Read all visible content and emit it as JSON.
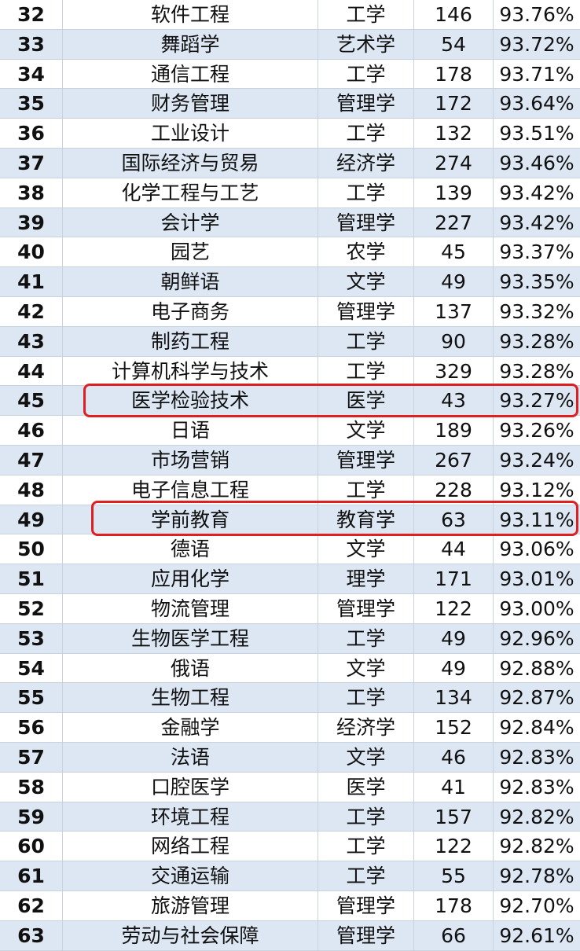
{
  "table": {
    "rows": [
      [
        "32",
        "软件工程",
        "工学",
        "146",
        "93.76%"
      ],
      [
        "33",
        "舞蹈学",
        "艺术学",
        "54",
        "93.72%"
      ],
      [
        "34",
        "通信工程",
        "工学",
        "178",
        "93.71%"
      ],
      [
        "35",
        "财务管理",
        "管理学",
        "172",
        "93.64%"
      ],
      [
        "36",
        "工业设计",
        "工学",
        "132",
        "93.51%"
      ],
      [
        "37",
        "国际经济与贸易",
        "经济学",
        "274",
        "93.46%"
      ],
      [
        "38",
        "化学工程与工艺",
        "工学",
        "139",
        "93.42%"
      ],
      [
        "39",
        "会计学",
        "管理学",
        "227",
        "93.42%"
      ],
      [
        "40",
        "园艺",
        "农学",
        "45",
        "93.37%"
      ],
      [
        "41",
        "朝鲜语",
        "文学",
        "49",
        "93.35%"
      ],
      [
        "42",
        "电子商务",
        "管理学",
        "137",
        "93.32%"
      ],
      [
        "43",
        "制药工程",
        "工学",
        "90",
        "93.28%"
      ],
      [
        "44",
        "计算机科学与技术",
        "工学",
        "329",
        "93.28%"
      ],
      [
        "45",
        "医学检验技术",
        "医学",
        "43",
        "93.27%"
      ],
      [
        "46",
        "日语",
        "文学",
        "189",
        "93.26%"
      ],
      [
        "47",
        "市场营销",
        "管理学",
        "267",
        "93.24%"
      ],
      [
        "48",
        "电子信息工程",
        "工学",
        "228",
        "93.12%"
      ],
      [
        "49",
        "学前教育",
        "教育学",
        "63",
        "93.11%"
      ],
      [
        "50",
        "德语",
        "文学",
        "44",
        "93.06%"
      ],
      [
        "51",
        "应用化学",
        "理学",
        "171",
        "93.01%"
      ],
      [
        "52",
        "物流管理",
        "管理学",
        "122",
        "93.00%"
      ],
      [
        "53",
        "生物医学工程",
        "工学",
        "49",
        "92.96%"
      ],
      [
        "54",
        "俄语",
        "文学",
        "49",
        "92.88%"
      ],
      [
        "55",
        "生物工程",
        "工学",
        "134",
        "92.87%"
      ],
      [
        "56",
        "金融学",
        "经济学",
        "152",
        "92.84%"
      ],
      [
        "57",
        "法语",
        "文学",
        "46",
        "92.83%"
      ],
      [
        "58",
        "口腔医学",
        "医学",
        "41",
        "92.83%"
      ],
      [
        "59",
        "环境工程",
        "工学",
        "157",
        "92.82%"
      ],
      [
        "60",
        "网络工程",
        "工学",
        "122",
        "92.82%"
      ],
      [
        "61",
        "交通运输",
        "工学",
        "55",
        "92.78%"
      ],
      [
        "62",
        "旅游管理",
        "管理学",
        "178",
        "92.70%"
      ],
      [
        "63",
        "劳动与社会保障",
        "管理学",
        "66",
        "92.61%"
      ]
    ]
  }
}
